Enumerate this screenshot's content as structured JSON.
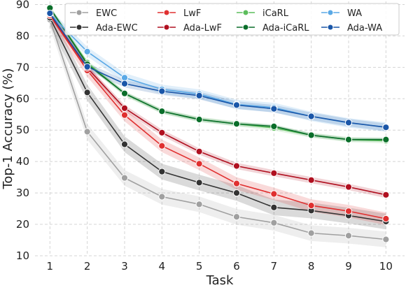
{
  "chart_data": {
    "type": "line",
    "title": "",
    "xlabel": "Task",
    "ylabel": "Top-1 Accuracy (%)",
    "x": [
      1,
      2,
      3,
      4,
      5,
      6,
      7,
      8,
      9,
      10
    ],
    "xlim": [
      0.6,
      10.5
    ],
    "ylim": [
      10,
      91
    ],
    "yticks": [
      10,
      20,
      30,
      40,
      50,
      60,
      70,
      80,
      90
    ],
    "xticks": [
      1,
      2,
      3,
      4,
      5,
      6,
      7,
      8,
      9,
      10
    ],
    "grid": true,
    "legend": "top-center, 4 columns",
    "series": [
      {
        "name": "EWC",
        "color": "#a0a0a0",
        "values": [
          85.2,
          49.5,
          34.8,
          28.8,
          26.4,
          22.4,
          20.5,
          17.2,
          16.4,
          15.2
        ],
        "band": 2.5
      },
      {
        "name": "Ada-EWC",
        "color": "#333333",
        "values": [
          85.8,
          62.0,
          45.5,
          36.8,
          33.3,
          30.0,
          25.4,
          24.4,
          22.8,
          20.9
        ],
        "band": 2.5
      },
      {
        "name": "LwF",
        "color": "#e03030",
        "values": [
          86.5,
          69.0,
          54.8,
          45.0,
          39.3,
          33.0,
          29.7,
          26.0,
          24.2,
          21.8
        ],
        "band": 2.0
      },
      {
        "name": "Ada-LwF",
        "color": "#b01020",
        "values": [
          87.0,
          69.8,
          57.0,
          49.2,
          43.2,
          38.6,
          36.3,
          34.1,
          31.9,
          29.4
        ],
        "band": 1.0
      },
      {
        "name": "iCaRL",
        "color": "#5cbd5c",
        "values": [
          88.8,
          71.5,
          61.6,
          56.0,
          53.4,
          52.0,
          50.7,
          48.4,
          47.0,
          46.6
        ],
        "band": 0.8
      },
      {
        "name": "Ada-iCaRL",
        "color": "#0a6e2a",
        "values": [
          88.9,
          71.0,
          61.7,
          56.0,
          53.4,
          52.0,
          51.2,
          48.4,
          47.0,
          47.0
        ],
        "band": 0.6
      },
      {
        "name": "WA",
        "color": "#5aa9e6",
        "values": [
          87.0,
          75.0,
          66.7,
          63.0,
          61.5,
          58.2,
          57.2,
          54.4,
          52.3,
          51.0
        ],
        "band": 1.5
      },
      {
        "name": "Ada-WA",
        "color": "#1a56a8",
        "values": [
          87.2,
          70.2,
          64.8,
          62.4,
          61.0,
          58.0,
          56.8,
          54.4,
          52.4,
          50.9
        ],
        "band": 1.2
      }
    ]
  }
}
